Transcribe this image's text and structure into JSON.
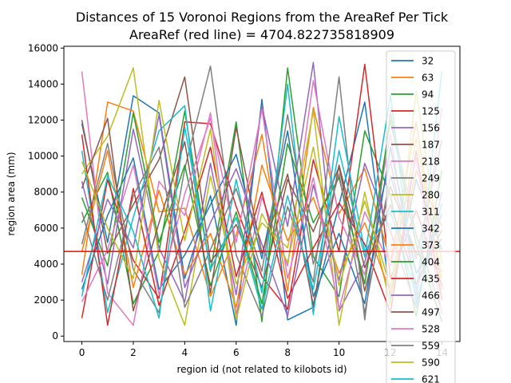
{
  "chart_data": {
    "type": "line",
    "title": "Distances of 15 Voronoi Regions from the AreaRef Per Tick",
    "subtitle": "AreaRef (red line) = 4704.822735818909",
    "xlabel": "region id (not related to kilobots id)",
    "ylabel": "region area (mm)",
    "xlim": [
      -0.7,
      14.7
    ],
    "ylim": [
      -300,
      16100
    ],
    "x_ticks": [
      0,
      2,
      4,
      6,
      8,
      10,
      12,
      14
    ],
    "y_ticks": [
      0,
      2000,
      4000,
      6000,
      8000,
      10000,
      12000,
      14000,
      16000
    ],
    "reference_line": {
      "y": 4704.822735818909,
      "color": "#ff0000"
    },
    "legend_position": "upper-right",
    "x": [
      0,
      1,
      2,
      3,
      4,
      5,
      6,
      7,
      8,
      9,
      10,
      11,
      12,
      13,
      14
    ],
    "series": [
      {
        "name": "32",
        "color": "#1f77b4",
        "values": [
          11800,
          5200,
          13350,
          12400,
          3200,
          7800,
          600,
          13150,
          900,
          1600,
          7300,
          13000,
          2100,
          8700,
          4800
        ]
      },
      {
        "name": "63",
        "color": "#ff7f0e",
        "values": [
          3400,
          13000,
          12500,
          6900,
          7100,
          2200,
          5600,
          11200,
          2500,
          12700,
          6800,
          9300,
          4100,
          11900,
          2600
        ]
      },
      {
        "name": "94",
        "color": "#2ca02c",
        "values": [
          6300,
          9100,
          1800,
          4700,
          12500,
          3600,
          11900,
          800,
          14900,
          4400,
          2200,
          11400,
          7800,
          1100,
          9200
        ]
      },
      {
        "name": "125",
        "color": "#d62728",
        "values": [
          1000,
          8700,
          4200,
          2100,
          11900,
          11800,
          7200,
          3300,
          1500,
          9800,
          4700,
          15100,
          3200,
          7000,
          2800
        ]
      },
      {
        "name": "156",
        "color": "#9467bd",
        "values": [
          8600,
          2900,
          11500,
          4900,
          1900,
          9600,
          2300,
          12800,
          6100,
          15200,
          1400,
          4100,
          9700,
          2600,
          6800
        ]
      },
      {
        "name": "187",
        "color": "#8c564b",
        "values": [
          12000,
          4600,
          7300,
          9800,
          14400,
          4100,
          6200,
          2700,
          8700,
          5800,
          9400,
          2500,
          8300,
          4600,
          3600
        ]
      },
      {
        "name": "218",
        "color": "#e377c2",
        "values": [
          14700,
          2400,
          600,
          8600,
          6700,
          12400,
          1200,
          7700,
          3900,
          14200,
          6600,
          3400,
          11200,
          1900,
          12700
        ]
      },
      {
        "name": "249",
        "color": "#7f7f7f",
        "values": [
          5100,
          10700,
          3700,
          1300,
          9300,
          15000,
          4500,
          1100,
          7200,
          3000,
          14400,
          900,
          12400,
          5600,
          1400
        ]
      },
      {
        "name": "280",
        "color": "#bcbd22",
        "values": [
          9000,
          11100,
          14900,
          4300,
          600,
          8900,
          2900,
          6300,
          4900,
          12500,
          600,
          8000,
          1700,
          13600,
          4000
        ]
      },
      {
        "name": "311",
        "color": "#17becf",
        "values": [
          10300,
          1300,
          6600,
          11400,
          12800,
          1400,
          8700,
          2400,
          14000,
          1200,
          12200,
          4700,
          6900,
          2300,
          14700
        ]
      },
      {
        "name": "342",
        "color": "#1f77b4",
        "values": [
          2600,
          6700,
          9900,
          2600,
          4500,
          7300,
          10100,
          4300,
          11400,
          2200,
          5700,
          1800,
          10500,
          3500,
          5400
        ]
      },
      {
        "name": "373",
        "color": "#ff7f0e",
        "values": [
          4700,
          10300,
          2700,
          8100,
          3400,
          5700,
          1600,
          9500,
          5300,
          7700,
          3500,
          6300,
          2400,
          9200,
          6100
        ]
      },
      {
        "name": "404",
        "color": "#2ca02c",
        "values": [
          7700,
          3900,
          12400,
          5200,
          9500,
          2800,
          6900,
          1800,
          10700,
          6300,
          8800,
          2900,
          12000,
          5100,
          800
        ]
      },
      {
        "name": "435",
        "color": "#d62728",
        "values": [
          11200,
          600,
          8200,
          1700,
          5800,
          10500,
          3300,
          8000,
          2100,
          4900,
          7400,
          5100,
          1300,
          10300,
          2000
        ]
      },
      {
        "name": "466",
        "color": "#9467bd",
        "values": [
          3000,
          7600,
          4900,
          12300,
          2700,
          6300,
          9300,
          5100,
          1100,
          8400,
          3100,
          9600,
          5800,
          1600,
          8000
        ]
      },
      {
        "name": "497",
        "color": "#8c564b",
        "values": [
          8200,
          12100,
          1400,
          6300,
          10800,
          2400,
          11600,
          4600,
          9000,
          1700,
          9500,
          3800,
          7300,
          2900,
          5900
        ]
      },
      {
        "name": "528",
        "color": "#e377c2",
        "values": [
          1900,
          4800,
          9500,
          2300,
          7900,
          12100,
          5200,
          12600,
          3200,
          8800,
          1500,
          6900,
          3900,
          9900,
          1200
        ]
      },
      {
        "name": "559",
        "color": "#7f7f7f",
        "values": [
          6900,
          2000,
          7800,
          10500,
          1600,
          4800,
          8200,
          3600,
          12300,
          4000,
          9000,
          1300,
          8900,
          4300,
          10900
        ]
      },
      {
        "name": "590",
        "color": "#bcbd22",
        "values": [
          9700,
          6000,
          3200,
          13100,
          5300,
          11500,
          900,
          6800,
          4100,
          10500,
          2800,
          7500,
          2700,
          11000,
          3200
        ]
      },
      {
        "name": "621",
        "color": "#17becf",
        "values": [
          2200,
          8900,
          5800,
          1000,
          11600,
          3700,
          6600,
          1500,
          7800,
          2600,
          10300,
          4400,
          13400,
          1800,
          7400
        ]
      }
    ]
  }
}
